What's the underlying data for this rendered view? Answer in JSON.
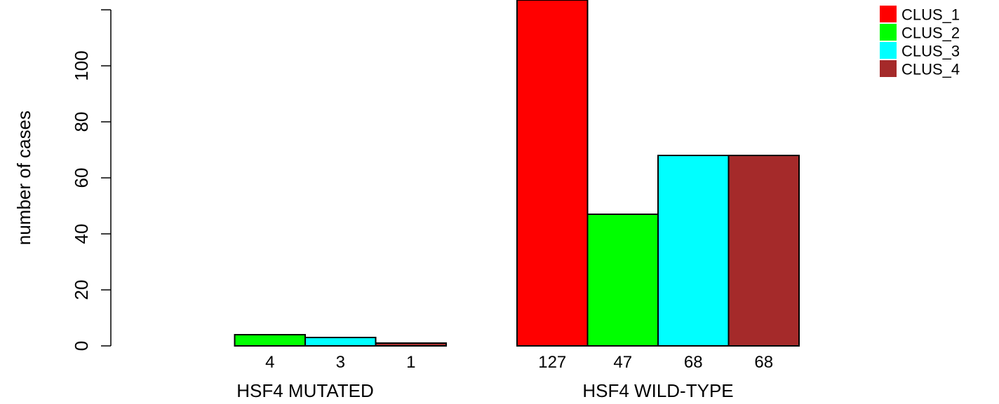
{
  "chart_data": {
    "type": "bar",
    "ylabel": "number of cases",
    "ylim": [
      0,
      120
    ],
    "yticks": [
      0,
      20,
      40,
      60,
      80,
      100
    ],
    "groups": [
      {
        "name": "HSF4 MUTATED",
        "values": [
          0,
          4,
          3,
          1
        ],
        "value_labels": [
          "",
          "4",
          "3",
          "1"
        ]
      },
      {
        "name": "HSF4 WILD-TYPE",
        "values": [
          127,
          47,
          68,
          68
        ],
        "value_labels": [
          "127",
          "47",
          "68",
          "68"
        ]
      }
    ],
    "series": [
      {
        "name": "CLUS_1",
        "color": "#ff0000"
      },
      {
        "name": "CLUS_2",
        "color": "#00ff00"
      },
      {
        "name": "CLUS_3",
        "color": "#00ffff"
      },
      {
        "name": "CLUS_4",
        "color": "#a52a2a"
      }
    ],
    "legend": "top-right"
  }
}
